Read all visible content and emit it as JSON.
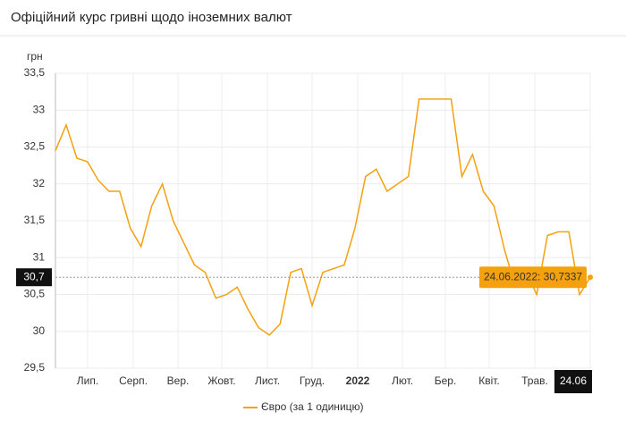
{
  "chart_data": {
    "type": "line",
    "title": "Офіційний курс гривні щодо іноземних валют",
    "y_label": "грн",
    "x_labels": [
      "Лип.",
      "Серп.",
      "Вер.",
      "Жовт.",
      "Лист.",
      "Груд.",
      "2022",
      "Лют.",
      "Бер.",
      "Квіт.",
      "Трав."
    ],
    "x_marker_label": "24.06",
    "y_marker_label": "30,7",
    "tooltip_label": "24.06.2022: 30,7337",
    "series": [
      {
        "name": "Євро (за 1 одиницю)",
        "color": "#f5a10f",
        "values": [
          32.45,
          32.8,
          32.35,
          32.3,
          32.05,
          31.9,
          31.9,
          31.4,
          31.15,
          31.7,
          32.0,
          31.5,
          31.2,
          30.9,
          30.8,
          30.45,
          30.5,
          30.6,
          30.3,
          30.05,
          29.95,
          30.1,
          30.8,
          30.85,
          30.35,
          30.8,
          30.85,
          30.9,
          31.4,
          32.1,
          32.2,
          31.9,
          32.0,
          32.1,
          33.15,
          33.15,
          33.15,
          33.15,
          32.1,
          32.4,
          31.9,
          31.7,
          31.1,
          30.6,
          30.8,
          30.5,
          31.3,
          31.35,
          31.35,
          30.5,
          30.7337
        ]
      }
    ],
    "ylim": [
      29.5,
      33.5
    ],
    "yticks": [
      {
        "value": 29.5,
        "label": "29,5"
      },
      30,
      {
        "value": 30.5,
        "label": "30,5"
      },
      31,
      {
        "value": 31.5,
        "label": "31,5"
      },
      32,
      {
        "value": 32.5,
        "label": "32,5"
      },
      33,
      {
        "value": 33.5,
        "label": "33,5"
      }
    ],
    "grid": true
  }
}
